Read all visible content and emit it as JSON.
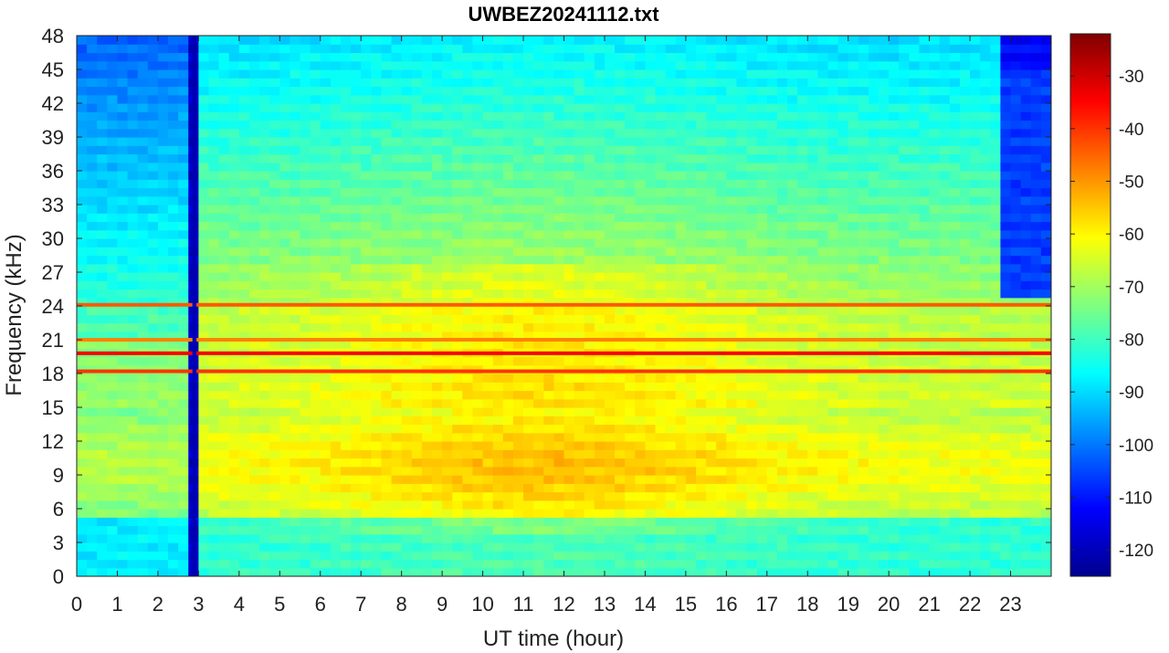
{
  "chart_data": {
    "type": "heatmap",
    "title": "UWBEZ20241112.txt",
    "xlabel": "UT time (hour)",
    "ylabel": "Frequency (kHz)",
    "xlim": [
      0,
      24
    ],
    "ylim": [
      0,
      48
    ],
    "x_ticks": [
      0,
      1,
      2,
      3,
      4,
      5,
      6,
      7,
      8,
      9,
      10,
      11,
      12,
      13,
      14,
      15,
      16,
      17,
      18,
      19,
      20,
      21,
      22,
      23
    ],
    "y_ticks": [
      0,
      3,
      6,
      9,
      12,
      15,
      18,
      21,
      24,
      27,
      30,
      33,
      36,
      39,
      42,
      45,
      48
    ],
    "colorbar": {
      "colormap": "jet",
      "clim": [
        -125,
        -22
      ],
      "ticks": [
        -30,
        -40,
        -50,
        -60,
        -70,
        -80,
        -90,
        -100,
        -110,
        -120
      ]
    },
    "features": {
      "data_gap_hours": [
        2.85,
        2.95
      ],
      "continuous_lines_khz": [
        19.8,
        18.2,
        24.1,
        21.0
      ],
      "upper_cutoff_after_hour": 22.65,
      "upper_cutoff_above_khz": 24.5,
      "peak_band_khz": [
        6,
        15
      ],
      "peak_band_hours": [
        9,
        14
      ]
    }
  }
}
